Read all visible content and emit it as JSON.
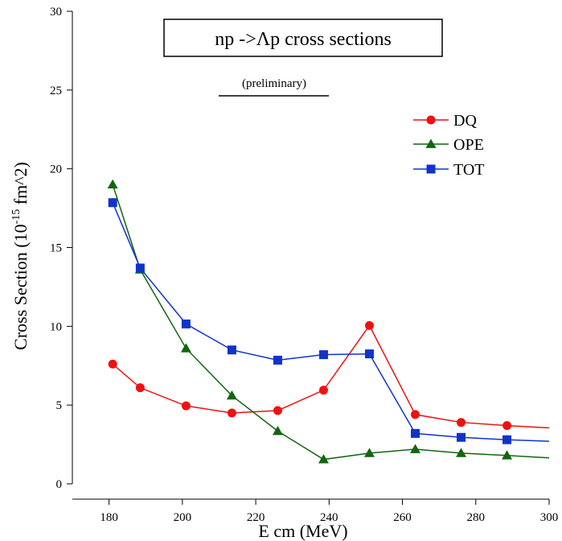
{
  "chart_data": {
    "type": "line",
    "title": "np ->Λp cross sections",
    "subtitle": "(preliminary)",
    "xlabel": "E cm (MeV)",
    "ylabel_prefix": "Cross Section (10",
    "ylabel_exp": "-15",
    "ylabel_suffix": " fm^2)",
    "xlim": [
      170,
      300
    ],
    "ylim": [
      0,
      30
    ],
    "x_ticks": [
      180,
      200,
      220,
      240,
      260,
      280,
      300
    ],
    "y_ticks": [
      0,
      5,
      10,
      15,
      20,
      25,
      30
    ],
    "legend_position": "top-right",
    "grid": false,
    "series": [
      {
        "name": "DQ",
        "color": "#ee1111",
        "marker": "circle",
        "x": [
          181,
          188.5,
          201,
          213.5,
          226,
          238.5,
          251,
          263.5,
          276,
          288.5,
          300
        ],
        "y": [
          7.6,
          6.1,
          4.95,
          4.5,
          4.65,
          5.95,
          10.05,
          4.4,
          3.9,
          3.7,
          3.55
        ],
        "markers_at": [
          0,
          1,
          2,
          3,
          4,
          5,
          6,
          7,
          8,
          9
        ]
      },
      {
        "name": "OPE",
        "color": "#116611",
        "marker": "triangle",
        "x": [
          181,
          188.5,
          201,
          213.5,
          226,
          238.5,
          251,
          263.5,
          276,
          288.5,
          300
        ],
        "y": [
          19.0,
          13.6,
          8.6,
          5.6,
          3.35,
          1.55,
          1.95,
          2.2,
          1.95,
          1.8,
          1.65
        ],
        "markers_at": [
          0,
          1,
          2,
          3,
          4,
          5,
          6,
          7,
          8,
          9
        ]
      },
      {
        "name": "TOT",
        "color": "#1133cc",
        "marker": "square",
        "x": [
          181,
          188.5,
          201,
          213.5,
          226,
          238.5,
          251,
          263.5,
          276,
          288.5,
          300
        ],
        "y": [
          17.85,
          13.7,
          10.15,
          8.5,
          7.85,
          8.2,
          8.25,
          3.2,
          2.95,
          2.8,
          2.7
        ],
        "markers_at": [
          0,
          1,
          2,
          3,
          4,
          5,
          6,
          7,
          8,
          9
        ]
      }
    ]
  }
}
